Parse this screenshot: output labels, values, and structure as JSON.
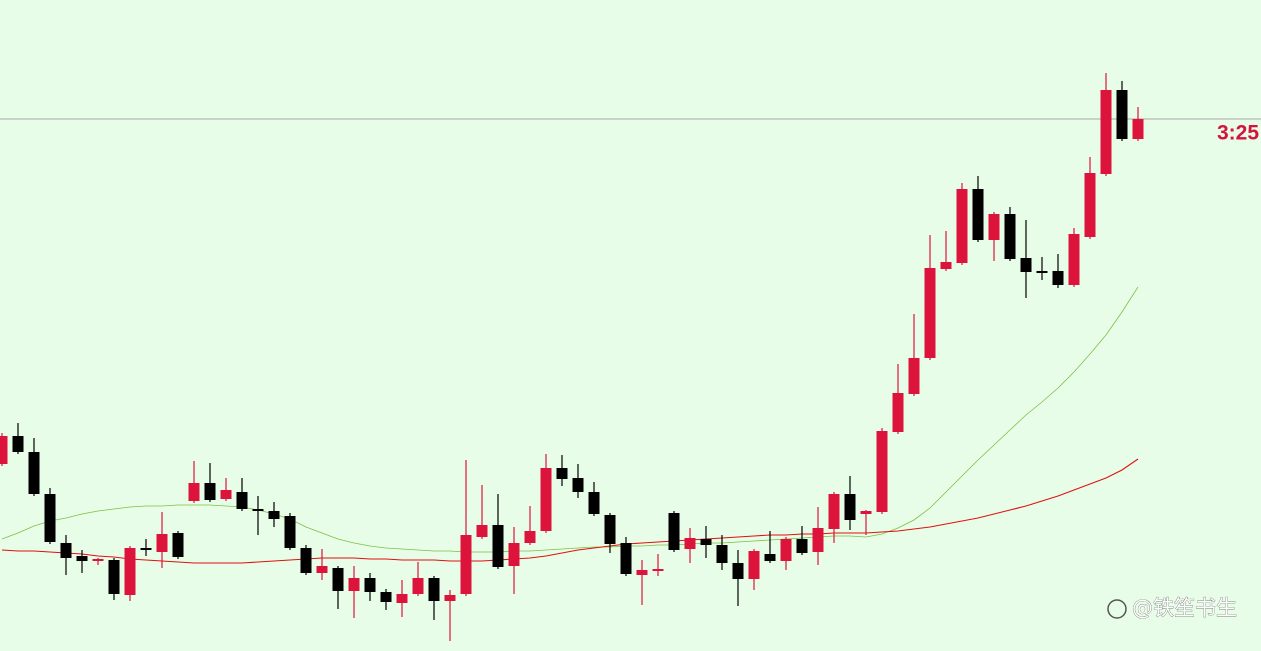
{
  "chart_data": {
    "type": "candlestick",
    "ylim": [
      0,
      651
    ],
    "up_color": "#dc143c",
    "down_color": "#000000",
    "open": [
      187,
      215,
      199,
      157,
      108,
      95,
      90,
      91,
      56,
      103,
      99,
      118,
      150,
      168,
      152,
      159,
      142,
      140,
      135,
      103,
      78,
      83,
      60,
      73,
      59,
      48,
      57,
      73,
      50,
      57,
      114,
      126,
      85,
      108,
      120,
      183,
      173,
      159,
      136,
      108,
      76,
      80,
      138,
      102,
      112,
      106,
      88,
      72,
      97,
      90,
      112,
      99,
      122,
      157,
      137,
      139,
      219,
      257,
      293,
      382,
      388,
      462,
      411,
      437,
      393,
      380,
      380,
      366,
      414,
      477,
      561,
      512
    ],
    "high": [
      218,
      228,
      213,
      163,
      116,
      101,
      93,
      93,
      105,
      112,
      139,
      120,
      190,
      188,
      173,
      173,
      155,
      149,
      138,
      106,
      102,
      85,
      85,
      78,
      62,
      71,
      89,
      75,
      61,
      191,
      166,
      157,
      124,
      145,
      197,
      196,
      187,
      169,
      138,
      114,
      91,
      97,
      140,
      123,
      125,
      116,
      101,
      102,
      120,
      114,
      125,
      144,
      159,
      175,
      141,
      223,
      287,
      337,
      416,
      420,
      468,
      475,
      439,
      444,
      431,
      394,
      397,
      423,
      494,
      578,
      570,
      544
    ],
    "low": [
      185,
      197,
      155,
      107,
      76,
      78,
      86,
      51,
      50,
      95,
      83,
      92,
      148,
      149,
      150,
      140,
      116,
      124,
      101,
      76,
      71,
      42,
      33,
      50,
      41,
      34,
      55,
      31,
      10,
      55,
      112,
      82,
      57,
      106,
      118,
      165,
      153,
      135,
      98,
      75,
      46,
      75,
      99,
      88,
      93,
      81,
      45,
      61,
      88,
      81,
      96,
      86,
      108,
      121,
      116,
      137,
      217,
      255,
      291,
      380,
      386,
      409,
      390,
      390,
      353,
      371,
      363,
      364,
      412,
      475,
      510,
      510
    ],
    "close": [
      215,
      199,
      157,
      109,
      93,
      90,
      92,
      57,
      103,
      101,
      117,
      94,
      168,
      151,
      161,
      142,
      140,
      132,
      103,
      78,
      85,
      60,
      73,
      59,
      49,
      57,
      73,
      50,
      56,
      116,
      126,
      84,
      108,
      120,
      183,
      172,
      159,
      137,
      107,
      77,
      81,
      82,
      101,
      113,
      106,
      88,
      72,
      100,
      90,
      112,
      98,
      123,
      157,
      131,
      140,
      220,
      258,
      293,
      383,
      389,
      462,
      411,
      437,
      392,
      379,
      378,
      366,
      417,
      478,
      561,
      512,
      532
    ],
    "series": [
      {
        "color": "#7ac142",
        "values": [
          112,
          118,
          125,
          130,
          133,
          137,
          140,
          142,
          144,
          145,
          145,
          146,
          146,
          146,
          145,
          144,
          141,
          137,
          132,
          124,
          118,
          112,
          108,
          105,
          103,
          102,
          101,
          100,
          100,
          99,
          99,
          99,
          100,
          100,
          101,
          102,
          103,
          104,
          104,
          105,
          105,
          106,
          106,
          107,
          108,
          108,
          109,
          110,
          111,
          112,
          113,
          114,
          115,
          115,
          114,
          117,
          123,
          131,
          143,
          159,
          175,
          191,
          206,
          221,
          236,
          249,
          263,
          279,
          297,
          316,
          339,
          364
        ]
      },
      {
        "color": "#e01010",
        "values": [
          101,
          100,
          100,
          99,
          98,
          97,
          95,
          94,
          92,
          91,
          90,
          89,
          88,
          88,
          88,
          88,
          89,
          90,
          91,
          92,
          93,
          93,
          93,
          92,
          92,
          91,
          91,
          91,
          90,
          90,
          90,
          91,
          92,
          93,
          95,
          98,
          101,
          103,
          105,
          107,
          108,
          109,
          110,
          111,
          112,
          113,
          114,
          115,
          116,
          116,
          117,
          117,
          118,
          118,
          118,
          119,
          120,
          122,
          124,
          127,
          130,
          133,
          137,
          141,
          145,
          150,
          155,
          161,
          167,
          173,
          181,
          192
        ]
      }
    ],
    "hline": {
      "value": 532,
      "label": "3:25",
      "color": "#a8a8a8",
      "label_color": "#d4143a"
    }
  },
  "watermark": "@铁笙书生"
}
